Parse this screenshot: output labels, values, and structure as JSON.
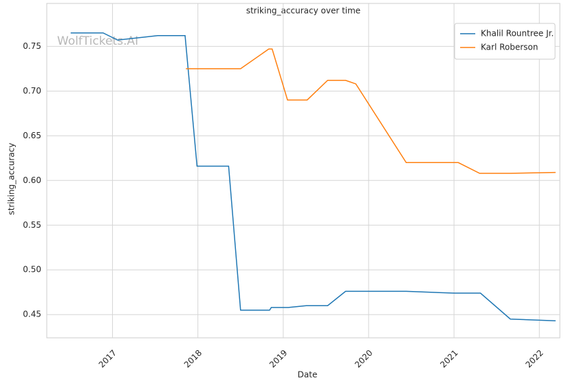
{
  "chart_data": {
    "type": "line",
    "title": "striking_accuracy over time",
    "watermark": "WolfTickets.AI",
    "x_label": "Date",
    "y_label": "striking_accuracy",
    "xlim": [
      2016.23,
      2022.24
    ],
    "xticks": [
      2017,
      2018,
      2019,
      2020,
      2021,
      2022
    ],
    "ylim": [
      0.424,
      0.798
    ],
    "yticks": [
      0.45,
      {
        "value": 0.5,
        "label": "0.50"
      },
      0.55,
      {
        "value": 0.6,
        "label": "0.60"
      },
      0.65,
      {
        "value": 0.7,
        "label": "0.70"
      },
      0.75
    ],
    "grid": true,
    "legend": "upper right",
    "series": [
      {
        "name": "Khalil Rountree Jr.",
        "color": "#1f77b4",
        "x": [
          2016.51,
          2016.89,
          2017.06,
          2017.53,
          2017.85,
          2017.99,
          2018.36,
          2018.5,
          2018.84,
          2018.86,
          2019.06,
          2019.27,
          2019.52,
          2019.73,
          2020.44,
          2021.0,
          2021.31,
          2021.66,
          2022.19
        ],
        "values": [
          0.765,
          0.765,
          0.757,
          0.762,
          0.762,
          0.616,
          0.616,
          0.455,
          0.455,
          0.458,
          0.458,
          0.46,
          0.46,
          0.476,
          0.476,
          0.474,
          0.474,
          0.445,
          0.443
        ]
      },
      {
        "name": "Karl Roberson",
        "color": "#ff7f0e",
        "x": [
          2017.86,
          2018.5,
          2018.83,
          2018.87,
          2019.05,
          2019.28,
          2019.52,
          2019.73,
          2019.85,
          2020.44,
          2021.05,
          2021.3,
          2021.66,
          2022.19
        ],
        "values": [
          0.725,
          0.725,
          0.747,
          0.747,
          0.69,
          0.69,
          0.712,
          0.712,
          0.708,
          0.62,
          0.62,
          0.608,
          0.608,
          0.609
        ]
      }
    ]
  }
}
